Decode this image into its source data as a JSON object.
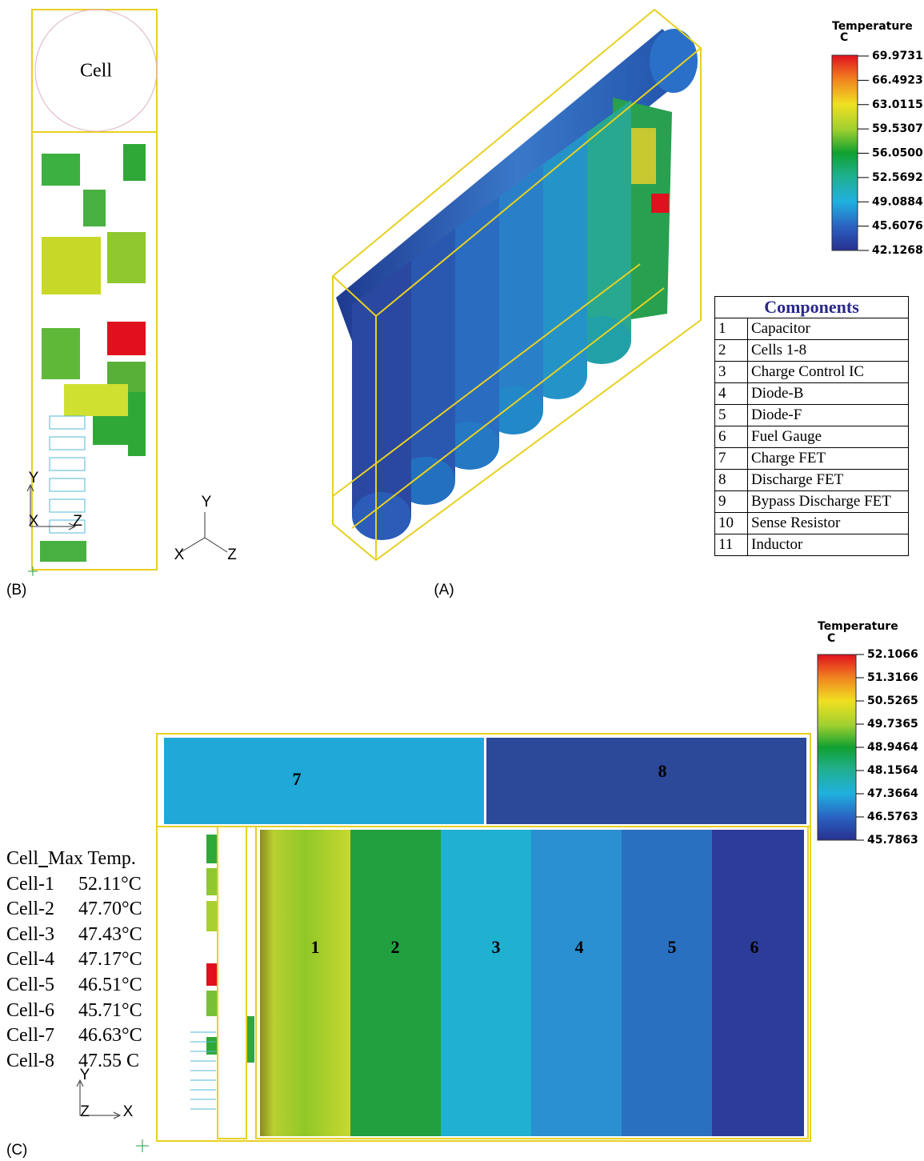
{
  "panel_a": {
    "label": "(A)",
    "legend": {
      "title": "Temperature",
      "unit": "C",
      "ticks": [
        "69.9731",
        "66.4923",
        "63.0115",
        "59.5307",
        "56.0500",
        "52.5692",
        "49.0884",
        "45.6076",
        "42.1268"
      ]
    }
  },
  "components": {
    "title": "Components",
    "rows": [
      [
        "1",
        "Capacitor"
      ],
      [
        "2",
        "Cells 1-8"
      ],
      [
        "3",
        "Charge Control IC"
      ],
      [
        "4",
        "Diode-B"
      ],
      [
        "5",
        "Diode-F"
      ],
      [
        "6",
        "Fuel Gauge"
      ],
      [
        "7",
        "Charge FET"
      ],
      [
        "8",
        "Discharge FET"
      ],
      [
        "9",
        "Bypass Discharge FET"
      ],
      [
        "10",
        "Sense Resistor"
      ],
      [
        "11",
        "Inductor"
      ]
    ]
  },
  "panel_b": {
    "label": "(B)",
    "cell_label": "Cell",
    "axis": {
      "y": "Y",
      "x": "X",
      "z": "Z"
    },
    "triad": {
      "y": "Y",
      "x": "X",
      "z": "Z"
    }
  },
  "panel_c": {
    "label": "(C)",
    "legend": {
      "title": "Temperature",
      "unit": "C",
      "ticks": [
        "52.1066",
        "51.3166",
        "50.5265",
        "49.7365",
        "48.9464",
        "48.1564",
        "47.3664",
        "46.5763",
        "45.7863"
      ]
    },
    "cell_numbers": [
      "1",
      "2",
      "3",
      "4",
      "5",
      "6",
      "7",
      "8"
    ],
    "table": {
      "header": [
        "Cell",
        "Max Temp."
      ],
      "rows": [
        [
          "Cell-1",
          "52.11°C"
        ],
        [
          "Cell-2",
          "47.70°C"
        ],
        [
          "Cell-3",
          "47.43°C"
        ],
        [
          "Cell-4",
          "47.17°C"
        ],
        [
          "Cell-5",
          "46.51°C"
        ],
        [
          "Cell-6",
          "45.71°C"
        ],
        [
          "Cell-7",
          "46.63°C"
        ],
        [
          "Cell-8",
          "47.55 C"
        ]
      ]
    },
    "axis": {
      "y": "Y",
      "z": "Z",
      "x": "X"
    }
  }
}
